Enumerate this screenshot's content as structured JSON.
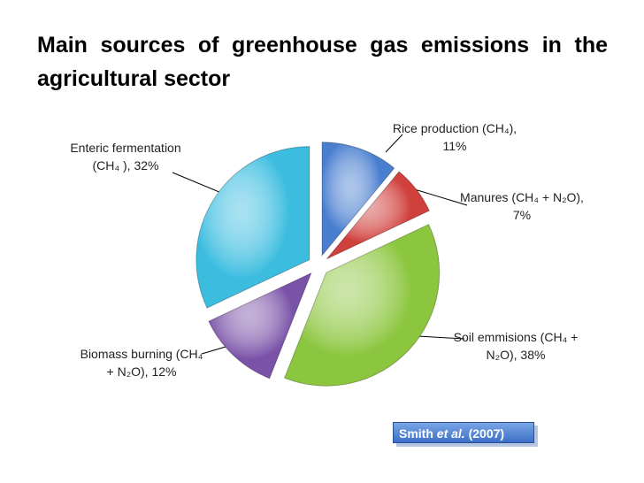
{
  "title": "Main sources of greenhouse gas emissions in the agricultural sector",
  "chart_data": {
    "type": "pie",
    "values": [
      11,
      7,
      38,
      12,
      32
    ],
    "value_labels": [
      "Rice production (CH₄), 11%",
      "Manures (CH₄ + N₂O), 7%",
      "Soil emmisions (CH₄ + N₂O), 38%",
      "Biomass burning (CH₄ + N₂O), 12%",
      "Enteric fermentation (CH₄ ), 32%"
    ],
    "colors": [
      "#4a7fd0",
      "#d0403c",
      "#8cc63f",
      "#7a52a8",
      "#3cbde0"
    ]
  },
  "source": {
    "author": "Smith",
    "etal": "et al.",
    "year": "(2007)"
  }
}
